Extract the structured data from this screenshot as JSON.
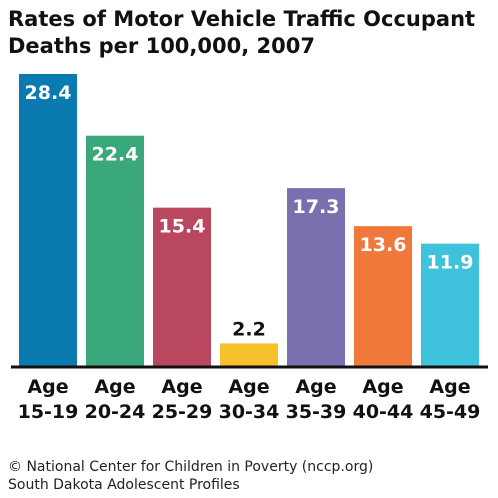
{
  "title_lines": [
    "Rates of Motor Vehicle Traffic Occupant",
    "Deaths per 100,000, 2007"
  ],
  "footer": {
    "line1": "© National Center for Children in Poverty (nccp.org)",
    "line2": "South Dakota Adolescent Profiles"
  },
  "chart_data": {
    "type": "bar",
    "title": "Rates of Motor Vehicle Traffic Occupant Deaths per 100,000, 2007",
    "xlabel": "",
    "ylabel": "",
    "categories": [
      [
        "Age",
        "15-19"
      ],
      [
        "Age",
        "20-24"
      ],
      [
        "Age",
        "25-29"
      ],
      [
        "Age",
        "30-34"
      ],
      [
        "Age",
        "35-39"
      ],
      [
        "Age",
        "40-44"
      ],
      [
        "Age",
        "45-49"
      ]
    ],
    "values": [
      28.4,
      22.4,
      15.4,
      2.2,
      17.3,
      13.6,
      11.9
    ],
    "value_labels": [
      "28.4",
      "22.4",
      "15.4",
      "2.2",
      "17.3",
      "13.6",
      "11.9"
    ],
    "colors": [
      "#0a7ab0",
      "#3aa87a",
      "#b8475f",
      "#f6c12a",
      "#7c6faf",
      "#f0783a",
      "#3fc3dc"
    ],
    "ylim": [
      0,
      28.4
    ],
    "grid": false,
    "legend": "none"
  }
}
